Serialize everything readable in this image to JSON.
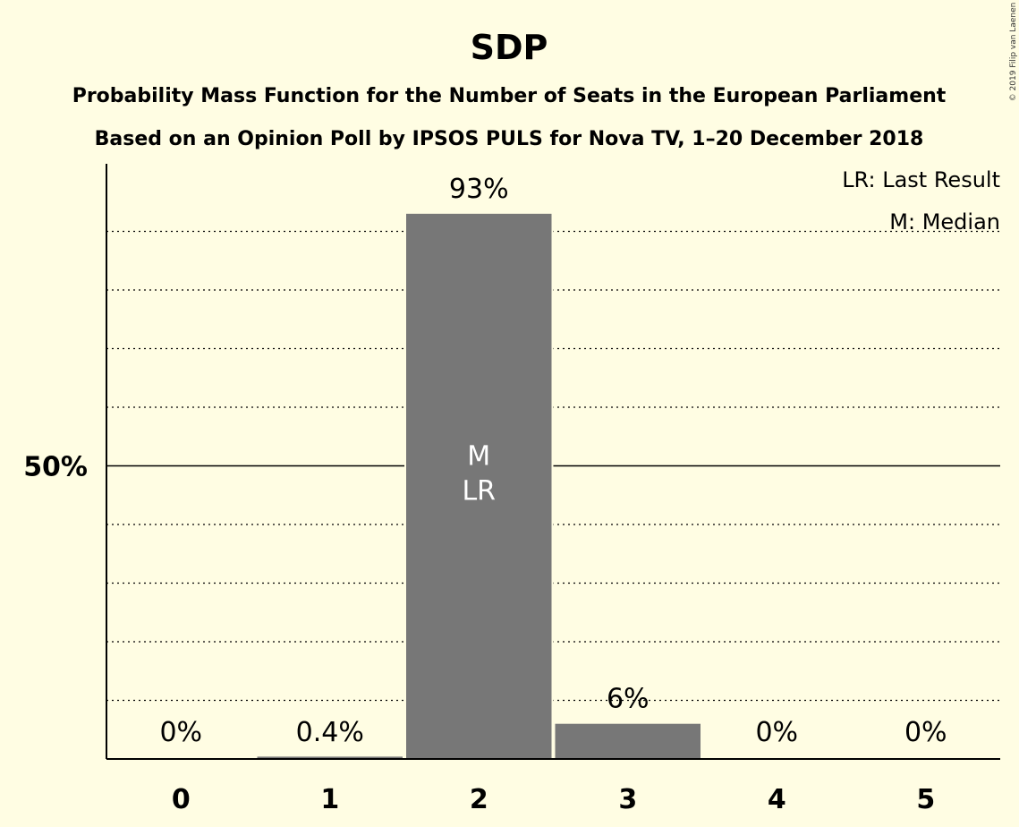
{
  "chart_data": {
    "type": "bar",
    "title": "SDP",
    "subtitle_lines": [
      "Probability Mass Function for the Number of Seats in the European Parliament",
      "Based on an Opinion Poll by IPSOS PULS for Nova TV, 1–20 December 2018"
    ],
    "categories": [
      "0",
      "1",
      "2",
      "3",
      "4",
      "5"
    ],
    "values": [
      0,
      0.4,
      93,
      6,
      0,
      0
    ],
    "value_labels": [
      "0%",
      "0.4%",
      "93%",
      "6%",
      "0%",
      "0%"
    ],
    "ylim": [
      0,
      100
    ],
    "y_tick_labels": [
      {
        "value": 50,
        "label": "50%"
      }
    ],
    "grid": true,
    "median_category": "2",
    "last_result_category": "2",
    "median_mark": "M",
    "last_result_mark": "LR",
    "legend": [
      "LR: Last Result",
      "M: Median"
    ],
    "legend_position": "top-right",
    "copyright": "© 2019 Filip van Laenen",
    "colors": {
      "background": "#fffde3",
      "bar": "#777777",
      "axis": "#000000",
      "in_bar_text": "#ffffff"
    }
  }
}
